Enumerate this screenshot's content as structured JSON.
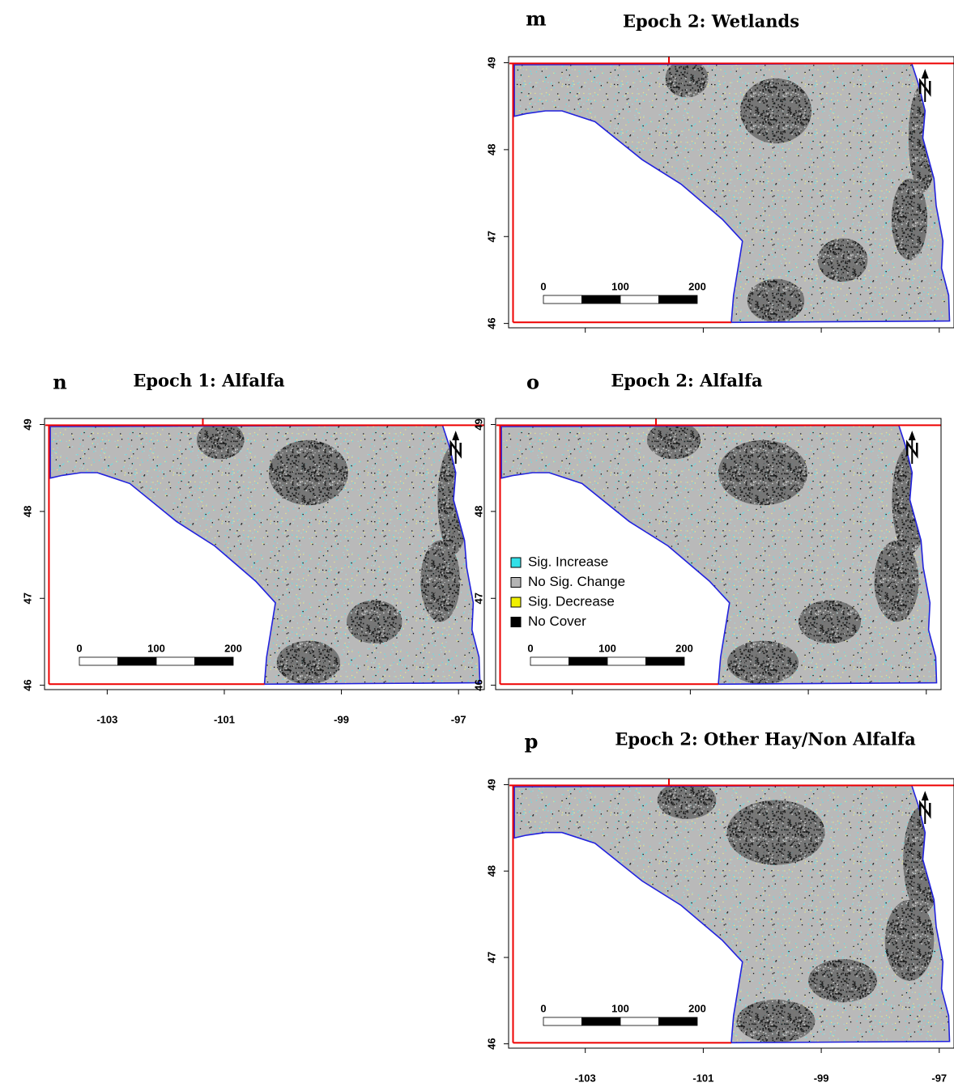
{
  "panels": [
    {
      "letter": "m",
      "title": "Epoch 2: Wetlands",
      "yticks": [
        49,
        48,
        47,
        46
      ],
      "ylim": [
        45.95,
        49.07
      ],
      "xlim": [
        -104.3,
        -96.75
      ],
      "scale_bar": [
        0,
        100,
        200
      ]
    },
    {
      "letter": "n",
      "title": "Epoch 1: Alfalfa",
      "yticks": [
        49,
        48,
        47,
        46
      ],
      "ylim": [
        45.95,
        49.07
      ],
      "xlim": [
        -104.07,
        -96.56
      ],
      "xticks": [
        -103,
        -101,
        -99,
        -97
      ],
      "scale_bar": [
        0,
        100,
        200
      ]
    },
    {
      "letter": "o",
      "title": "Epoch 2: Alfalfa",
      "yticks": [
        49,
        48,
        47,
        46
      ],
      "ylim": [
        45.95,
        49.07
      ],
      "xlim": [
        -104.3,
        -96.75
      ],
      "scale_bar": [
        0,
        100,
        200
      ],
      "legend": [
        {
          "name": "Sig. Increase",
          "color": "#33e0e8"
        },
        {
          "name": "No Sig. Change",
          "color": "#b4b4b4"
        },
        {
          "name": "Sig. Decrease",
          "color": "#f0f000"
        },
        {
          "name": "No Cover",
          "color": "#000000"
        }
      ]
    },
    {
      "letter": "p",
      "title": "Epoch 2: Other Hay/Non Alfalfa",
      "yticks": [
        49,
        48,
        47,
        46
      ],
      "ylim": [
        45.95,
        49.07
      ],
      "xlim": [
        -104.3,
        -96.75
      ],
      "xticks": [
        -103,
        -101,
        -99,
        -97
      ],
      "scale_bar": [
        0,
        100,
        200
      ]
    }
  ]
}
